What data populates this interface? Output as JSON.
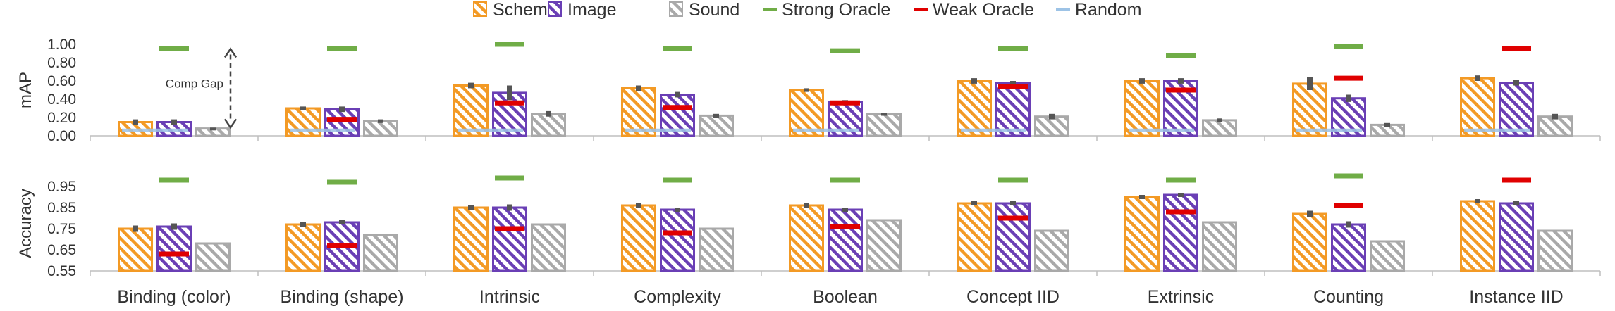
{
  "chart_data": {
    "type": "bar",
    "categories": [
      "Binding (color)",
      "Binding (shape)",
      "Intrinsic",
      "Complexity",
      "Boolean",
      "Concept IID",
      "Extrinsic",
      "Counting",
      "Instance IID"
    ],
    "legend": [
      {
        "name": "Schema",
        "kind": "bar-hatch",
        "color": "#f39a25"
      },
      {
        "name": "Image",
        "kind": "bar-hatch",
        "color": "#6a3fb5"
      },
      {
        "name": "Sound",
        "kind": "bar-hatch",
        "color": "#a9a9a9"
      },
      {
        "name": "Strong Oracle",
        "kind": "line",
        "color": "#70ad47"
      },
      {
        "name": "Weak Oracle",
        "kind": "line",
        "color": "#e00000"
      },
      {
        "name": "Random",
        "kind": "line",
        "color": "#9dc3e6"
      }
    ],
    "colors": {
      "schema": "#f39a25",
      "image": "#6a3fb5",
      "sound": "#a9a9a9",
      "strong": "#70ad47",
      "weak": "#e00000",
      "random": "#9dc3e6",
      "error": "#555555"
    },
    "panels": [
      {
        "id": "map",
        "ylabel": "mAP",
        "ylim": [
          0,
          1.0
        ],
        "yticks": [
          0.0,
          0.2,
          0.4,
          0.6,
          0.8,
          1.0
        ],
        "ytick_labels": [
          "0.00",
          "0.20",
          "0.40",
          "0.60",
          "0.80",
          "1.00"
        ],
        "series": [
          {
            "name": "Schema",
            "values": [
              0.15,
              0.3,
              0.55,
              0.52,
              0.5,
              0.6,
              0.6,
              0.57,
              0.63
            ],
            "errors": [
              0.03,
              0.02,
              0.03,
              0.03,
              0.02,
              0.03,
              0.03,
              0.07,
              0.03
            ]
          },
          {
            "name": "Image",
            "values": [
              0.15,
              0.29,
              0.47,
              0.45,
              0.37,
              0.58,
              0.6,
              0.41,
              0.58
            ],
            "errors": [
              0.03,
              0.03,
              0.08,
              0.03,
              0.02,
              0.02,
              0.03,
              0.04,
              0.03
            ]
          },
          {
            "name": "Sound",
            "values": [
              0.08,
              0.16,
              0.24,
              0.22,
              0.24,
              0.21,
              0.17,
              0.12,
              0.21
            ],
            "errors": [
              0.01,
              0.02,
              0.03,
              0.02,
              0.01,
              0.03,
              0.02,
              0.02,
              0.03
            ]
          }
        ],
        "strong_oracle": [
          0.95,
          0.95,
          1.0,
          0.95,
          0.93,
          0.95,
          0.88,
          0.98,
          null
        ],
        "weak_oracle": [
          null,
          0.18,
          0.36,
          0.31,
          0.36,
          0.54,
          0.5,
          0.63,
          0.95
        ],
        "random": [
          0.06,
          0.06,
          0.06,
          0.06,
          0.06,
          0.06,
          0.06,
          0.06,
          0.06
        ],
        "annotation": {
          "text": "Comp Gap",
          "from": 0.09,
          "to": 0.95,
          "category": 0
        }
      },
      {
        "id": "accuracy",
        "ylabel": "Accuracy",
        "ylim": [
          0.55,
          1.0
        ],
        "yticks": [
          0.55,
          0.65,
          0.75,
          0.85,
          0.95
        ],
        "ytick_labels": [
          "0.55",
          "0.65",
          "0.75",
          "0.85",
          "0.95"
        ],
        "series": [
          {
            "name": "Schema",
            "values": [
              0.75,
              0.77,
              0.85,
              0.86,
              0.86,
              0.87,
              0.9,
              0.82,
              0.88
            ],
            "errors": [
              0.015,
              0.01,
              0.01,
              0.01,
              0.01,
              0.01,
              0.01,
              0.015,
              0.01
            ]
          },
          {
            "name": "Image",
            "values": [
              0.76,
              0.78,
              0.85,
              0.84,
              0.84,
              0.87,
              0.91,
              0.77,
              0.87
            ],
            "errors": [
              0.015,
              0.01,
              0.015,
              0.01,
              0.01,
              0.01,
              0.01,
              0.015,
              0.01
            ]
          },
          {
            "name": "Sound",
            "values": [
              0.68,
              0.72,
              0.77,
              0.75,
              0.79,
              0.74,
              0.78,
              0.69,
              0.74
            ],
            "errors": [
              null,
              null,
              null,
              null,
              null,
              null,
              null,
              null,
              null
            ]
          }
        ],
        "strong_oracle": [
          0.98,
          0.97,
          0.99,
          0.98,
          0.98,
          0.98,
          0.98,
          1.0,
          null
        ],
        "weak_oracle": [
          0.63,
          0.67,
          0.75,
          0.73,
          0.76,
          0.8,
          0.83,
          0.86,
          0.98
        ],
        "random": [
          null,
          null,
          null,
          null,
          null,
          null,
          null,
          null,
          null
        ]
      }
    ]
  }
}
